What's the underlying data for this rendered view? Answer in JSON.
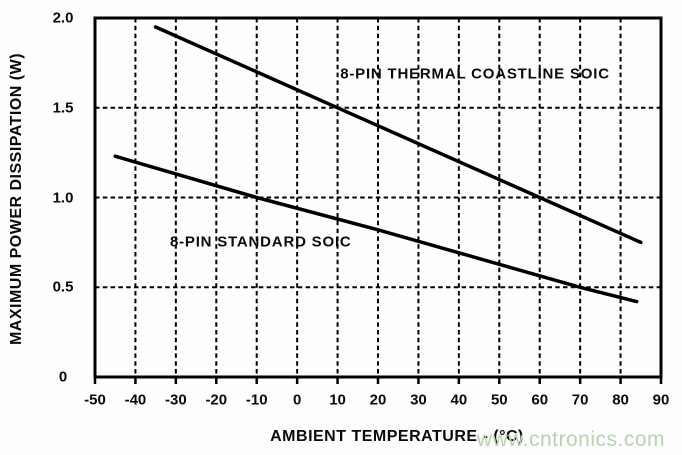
{
  "chart_data": {
    "type": "line",
    "title": "",
    "xlabel": "AMBIENT TEMPERATURE - (°C)",
    "ylabel": "MAXIMUM POWER DISSIPATION (W)",
    "xlim": [
      -50,
      90
    ],
    "ylim": [
      0,
      2
    ],
    "xticks": [
      -50,
      -40,
      -30,
      -20,
      -10,
      0,
      10,
      20,
      30,
      40,
      50,
      60,
      70,
      80,
      90
    ],
    "yticks": [
      {
        "v": 0,
        "label": "0"
      },
      {
        "v": 0.5,
        "label": "0.5"
      },
      {
        "v": 1,
        "label": "1.0"
      },
      {
        "v": 1.5,
        "label": "1.5"
      },
      {
        "v": 2,
        "label": "2.0"
      }
    ],
    "grid": {
      "shown": true,
      "style": "dashed",
      "color": "#000000",
      "x_every": 10,
      "y_every": 0.5
    },
    "legend_position": "inline-labels",
    "axis_color": "#000000",
    "series": [
      {
        "name": "8-PIN THERMAL COASTLINE SOIC",
        "color": "#000000",
        "points": [
          [
            -35,
            1.95
          ],
          [
            10,
            1.5
          ],
          [
            60,
            1.0
          ],
          [
            85,
            0.75
          ]
        ],
        "label": {
          "text": "8-PIN THERMAL COASTLINE SOIC",
          "x": 44,
          "y": 1.69
        }
      },
      {
        "name": "8-PIN STANDARD SOIC",
        "color": "#000000",
        "points": [
          [
            -45,
            1.23
          ],
          [
            -10,
            1.0
          ],
          [
            20,
            0.82
          ],
          [
            70,
            0.5
          ],
          [
            84,
            0.42
          ]
        ],
        "label": {
          "text": "8-PIN STANDARD SOIC",
          "x": -9,
          "y": 0.75
        }
      }
    ],
    "watermark": {
      "text": "www.cntronics.com",
      "color": "#b5d3ae"
    }
  }
}
